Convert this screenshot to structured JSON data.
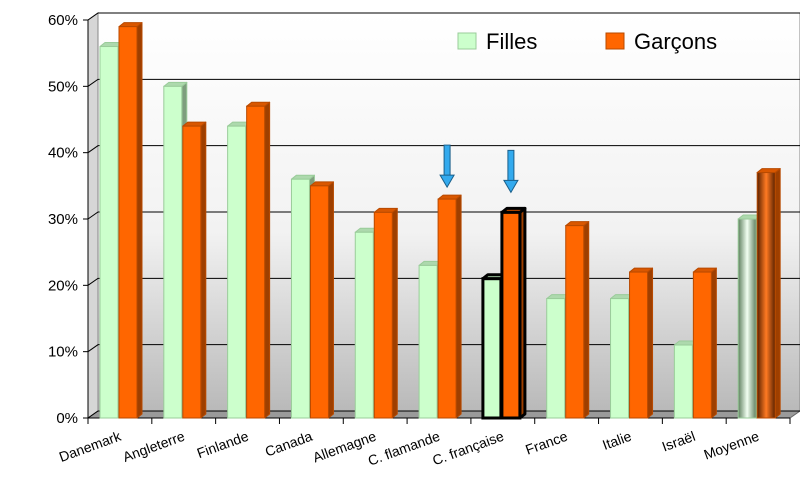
{
  "chart_data": {
    "type": "bar",
    "title": "",
    "xlabel": "",
    "ylabel": "",
    "ylim": [
      0,
      60
    ],
    "y_ticks": [
      "0%",
      "10%",
      "20%",
      "30%",
      "40%",
      "50%",
      "60%"
    ],
    "y_tick_values": [
      0,
      10,
      20,
      30,
      40,
      50,
      60
    ],
    "grid": true,
    "legend_position": "top-right",
    "categories": [
      "Danemark",
      "Angleterre",
      "Finlande",
      "Canada",
      "Allemagne",
      "C. flamande",
      "C. française",
      "France",
      "Italie",
      "Israël",
      "Moyenne"
    ],
    "series": [
      {
        "name": "Filles",
        "color": "#ccffcc",
        "values": [
          56,
          50,
          44,
          36,
          28,
          23,
          21,
          18,
          18,
          11,
          30
        ]
      },
      {
        "name": "Garçons",
        "color": "#ff6600",
        "values": [
          59,
          44,
          47,
          35,
          31,
          33,
          31,
          29,
          22,
          22,
          37
        ]
      }
    ],
    "highlighted_category": "C. française",
    "arrow_annotations": [
      "C. flamande",
      "C. française"
    ],
    "arrow_color": "#33aaee"
  }
}
